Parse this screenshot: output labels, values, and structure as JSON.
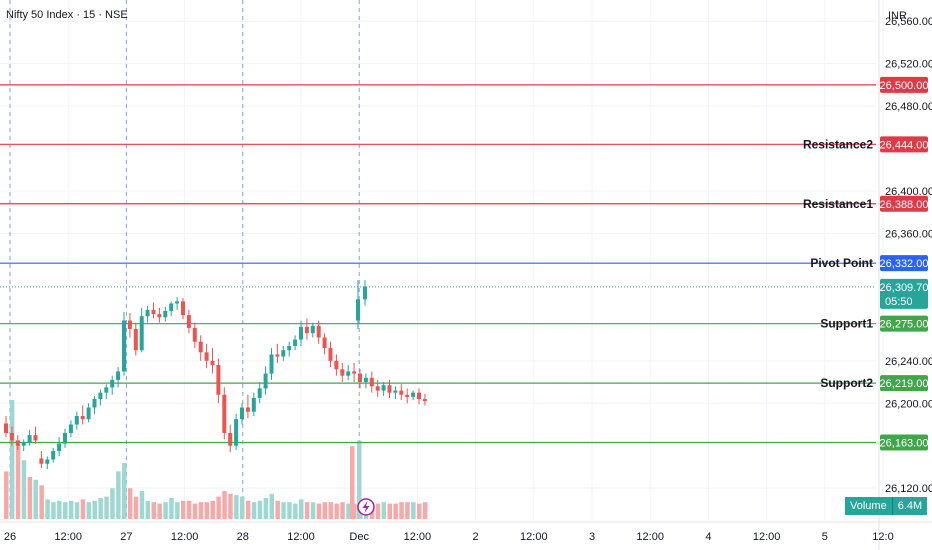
{
  "header": {
    "title": "Nifty 50 Index · 15 · NSE",
    "currency": "INR"
  },
  "volume_badge": {
    "label": "Volume",
    "value": "6.4M"
  },
  "colors": {
    "resistance": "#e03a48",
    "pivot": "#2962ff",
    "support": "#3fa64a",
    "up_candle": "#26a69a",
    "down_candle": "#ef5350",
    "up_volume": "#9fd8d2",
    "down_volume": "#f7a9a7",
    "separator": "#7ea6e0",
    "grid": "#f0f3fa",
    "lightning": "#9c27b0"
  },
  "chart_data": {
    "type": "candlestick",
    "symbol": "Nifty 50 Index",
    "interval": "15",
    "exchange": "NSE",
    "y_range": [
      26090,
      26580
    ],
    "y_ticks": [
      {
        "value": 26560,
        "label": "26,560.00"
      },
      {
        "value": 26520,
        "label": "26,520.00"
      },
      {
        "value": 26480,
        "label": "26,480.00"
      },
      {
        "value": 26400,
        "label": "26,400.00"
      },
      {
        "value": 26360,
        "label": "26,360.00"
      },
      {
        "value": 26240,
        "label": "26,240.00"
      },
      {
        "value": 26200,
        "label": "26,200.00"
      },
      {
        "value": 26120,
        "label": "26,120.00"
      }
    ],
    "x_ticks": [
      {
        "label": "26",
        "major": true
      },
      {
        "label": "12:00",
        "major": false
      },
      {
        "label": "27",
        "major": true
      },
      {
        "label": "12:00",
        "major": false
      },
      {
        "label": "28",
        "major": true
      },
      {
        "label": "12:00",
        "major": false
      },
      {
        "label": "Dec",
        "major": true
      },
      {
        "label": "12:00",
        "major": false
      },
      {
        "label": "2",
        "major": true
      },
      {
        "label": "12:00",
        "major": false
      },
      {
        "label": "3",
        "major": true
      },
      {
        "label": "12:00",
        "major": false
      },
      {
        "label": "4",
        "major": true
      },
      {
        "label": "12:00",
        "major": false
      },
      {
        "label": "5",
        "major": true
      },
      {
        "label": "12:0",
        "major": false
      }
    ],
    "levels": [
      {
        "name": "",
        "value": 26500,
        "label": "26,500.00",
        "kind": "resistance"
      },
      {
        "name": "Resistance2",
        "value": 26444,
        "label": "26,444.00",
        "kind": "resistance"
      },
      {
        "name": "Resistance1",
        "value": 26388,
        "label": "26,388.00",
        "kind": "resistance"
      },
      {
        "name": "Pivot Point",
        "value": 26332,
        "label": "26,332.00",
        "kind": "pivot"
      },
      {
        "name": "Support1",
        "value": 26275,
        "label": "26,275.00",
        "kind": "support"
      },
      {
        "name": "Support2",
        "value": 26219,
        "label": "26,219.00",
        "kind": "support"
      },
      {
        "name": "",
        "value": 26163,
        "label": "26,163.00",
        "kind": "support"
      }
    ],
    "last_price": {
      "value": 26309.7,
      "label": "26,309.70",
      "countdown": "05:50"
    },
    "candles": [
      {
        "o": 26181,
        "h": 26188,
        "c": 26172,
        "l": 26168
      },
      {
        "o": 26172,
        "h": 26178,
        "c": 26165,
        "l": 26160
      },
      {
        "o": 26165,
        "h": 26170,
        "c": 26160,
        "l": 26156
      },
      {
        "o": 26160,
        "h": 26166,
        "c": 26163,
        "l": 26155
      },
      {
        "o": 26163,
        "h": 26175,
        "c": 26170,
        "l": 26160
      },
      {
        "o": 26170,
        "h": 26178,
        "c": 26165,
        "l": 26162
      },
      {
        "o": 26148,
        "h": 26155,
        "c": 26143,
        "l": 26139
      },
      {
        "o": 26143,
        "h": 26150,
        "c": 26147,
        "l": 26138
      },
      {
        "o": 26147,
        "h": 26158,
        "c": 26155,
        "l": 26144
      },
      {
        "o": 26155,
        "h": 26168,
        "c": 26162,
        "l": 26150
      },
      {
        "o": 26162,
        "h": 26176,
        "c": 26172,
        "l": 26158
      },
      {
        "o": 26172,
        "h": 26184,
        "c": 26180,
        "l": 26168
      },
      {
        "o": 26180,
        "h": 26192,
        "c": 26188,
        "l": 26175
      },
      {
        "o": 26188,
        "h": 26198,
        "c": 26185,
        "l": 26180
      },
      {
        "o": 26185,
        "h": 26200,
        "c": 26196,
        "l": 26182
      },
      {
        "o": 26196,
        "h": 26207,
        "c": 26204,
        "l": 26190
      },
      {
        "o": 26204,
        "h": 26213,
        "c": 26210,
        "l": 26198
      },
      {
        "o": 26210,
        "h": 26218,
        "c": 26215,
        "l": 26204
      },
      {
        "o": 26215,
        "h": 26226,
        "c": 26222,
        "l": 26208
      },
      {
        "o": 26222,
        "h": 26234,
        "c": 26230,
        "l": 26215
      },
      {
        "o": 26230,
        "h": 26286,
        "c": 26278,
        "l": 26226
      },
      {
        "o": 26278,
        "h": 26285,
        "c": 26270,
        "l": 26262
      },
      {
        "o": 26270,
        "h": 26276,
        "c": 26250,
        "l": 26245
      },
      {
        "o": 26250,
        "h": 26290,
        "c": 26282,
        "l": 26248
      },
      {
        "o": 26282,
        "h": 26292,
        "c": 26288,
        "l": 26276
      },
      {
        "o": 26288,
        "h": 26295,
        "c": 26284,
        "l": 26280
      },
      {
        "o": 26284,
        "h": 26290,
        "c": 26281,
        "l": 26276
      },
      {
        "o": 26281,
        "h": 26291,
        "c": 26287,
        "l": 26277
      },
      {
        "o": 26287,
        "h": 26296,
        "c": 26294,
        "l": 26282
      },
      {
        "o": 26294,
        "h": 26300,
        "c": 26296,
        "l": 26288
      },
      {
        "o": 26296,
        "h": 26299,
        "c": 26283,
        "l": 26279
      },
      {
        "o": 26283,
        "h": 26288,
        "c": 26271,
        "l": 26266
      },
      {
        "o": 26271,
        "h": 26276,
        "c": 26258,
        "l": 26252
      },
      {
        "o": 26258,
        "h": 26264,
        "c": 26248,
        "l": 26240
      },
      {
        "o": 26248,
        "h": 26256,
        "c": 26240,
        "l": 26233
      },
      {
        "o": 26240,
        "h": 26252,
        "c": 26236,
        "l": 26228
      },
      {
        "o": 26236,
        "h": 26242,
        "c": 26208,
        "l": 26200
      },
      {
        "o": 26208,
        "h": 26215,
        "c": 26172,
        "l": 26166
      },
      {
        "o": 26172,
        "h": 26180,
        "c": 26160,
        "l": 26154
      },
      {
        "o": 26160,
        "h": 26190,
        "c": 26185,
        "l": 26156
      },
      {
        "o": 26185,
        "h": 26200,
        "c": 26196,
        "l": 26180
      },
      {
        "o": 26196,
        "h": 26208,
        "c": 26192,
        "l": 26186
      },
      {
        "o": 26192,
        "h": 26210,
        "c": 26205,
        "l": 26188
      },
      {
        "o": 26205,
        "h": 26220,
        "c": 26214,
        "l": 26200
      },
      {
        "o": 26214,
        "h": 26235,
        "c": 26228,
        "l": 26208
      },
      {
        "o": 26228,
        "h": 26252,
        "c": 26246,
        "l": 26222
      },
      {
        "o": 26246,
        "h": 26256,
        "c": 26244,
        "l": 26238
      },
      {
        "o": 26244,
        "h": 26254,
        "c": 26250,
        "l": 26240
      },
      {
        "o": 26250,
        "h": 26258,
        "c": 26254,
        "l": 26244
      },
      {
        "o": 26254,
        "h": 26264,
        "c": 26260,
        "l": 26250
      },
      {
        "o": 26260,
        "h": 26278,
        "c": 26272,
        "l": 26254
      },
      {
        "o": 26272,
        "h": 26280,
        "c": 26266,
        "l": 26260
      },
      {
        "o": 26266,
        "h": 26276,
        "c": 26273,
        "l": 26262
      },
      {
        "o": 26273,
        "h": 26278,
        "c": 26262,
        "l": 26256
      },
      {
        "o": 26262,
        "h": 26266,
        "c": 26252,
        "l": 26246
      },
      {
        "o": 26252,
        "h": 26258,
        "c": 26240,
        "l": 26234
      },
      {
        "o": 26240,
        "h": 26246,
        "c": 26232,
        "l": 26226
      },
      {
        "o": 26232,
        "h": 26238,
        "c": 26226,
        "l": 26220
      },
      {
        "o": 26226,
        "h": 26236,
        "c": 26230,
        "l": 26222
      },
      {
        "o": 26230,
        "h": 26238,
        "c": 26228,
        "l": 26220
      },
      {
        "o": 26228,
        "h": 26232,
        "c": 26220,
        "l": 26214
      },
      {
        "o": 26220,
        "h": 26228,
        "c": 26224,
        "l": 26214
      },
      {
        "o": 26224,
        "h": 26230,
        "c": 26216,
        "l": 26210
      },
      {
        "o": 26216,
        "h": 26222,
        "c": 26212,
        "l": 26206
      },
      {
        "o": 26212,
        "h": 26220,
        "c": 26217,
        "l": 26207
      },
      {
        "o": 26217,
        "h": 26222,
        "c": 26210,
        "l": 26205
      },
      {
        "o": 26210,
        "h": 26216,
        "c": 26212,
        "l": 26204
      },
      {
        "o": 26212,
        "h": 26218,
        "c": 26208,
        "l": 26203
      },
      {
        "o": 26208,
        "h": 26214,
        "c": 26206,
        "l": 26200
      },
      {
        "o": 26206,
        "h": 26212,
        "c": 26210,
        "l": 26203
      },
      {
        "o": 26210,
        "h": 26214,
        "c": 26204,
        "l": 26199
      },
      {
        "o": 26204,
        "h": 26209,
        "c": 26202,
        "l": 26198
      },
      {
        "o": 26278,
        "h": 26316,
        "c": 26298,
        "l": 26270
      },
      {
        "o": 26298,
        "h": 26316,
        "c": 26310,
        "l": 26292
      }
    ],
    "volumes": [
      {
        "v": 0.34,
        "up": false
      },
      {
        "v": 0.85,
        "up": true
      },
      {
        "v": 0.56,
        "up": false
      },
      {
        "v": 0.42,
        "up": true
      },
      {
        "v": 0.3,
        "up": false
      },
      {
        "v": 0.28,
        "up": true
      },
      {
        "v": 0.24,
        "up": false
      },
      {
        "v": 0.14,
        "up": true
      },
      {
        "v": 0.12,
        "up": true
      },
      {
        "v": 0.13,
        "up": true
      },
      {
        "v": 0.12,
        "up": true
      },
      {
        "v": 0.13,
        "up": true
      },
      {
        "v": 0.12,
        "up": true
      },
      {
        "v": 0.14,
        "up": false
      },
      {
        "v": 0.12,
        "up": true
      },
      {
        "v": 0.13,
        "up": true
      },
      {
        "v": 0.15,
        "up": true
      },
      {
        "v": 0.16,
        "up": true
      },
      {
        "v": 0.22,
        "up": true
      },
      {
        "v": 0.34,
        "up": true
      },
      {
        "v": 0.4,
        "up": true
      },
      {
        "v": 0.22,
        "up": false
      },
      {
        "v": 0.16,
        "up": false
      },
      {
        "v": 0.2,
        "up": true
      },
      {
        "v": 0.13,
        "up": true
      },
      {
        "v": 0.12,
        "up": false
      },
      {
        "v": 0.11,
        "up": false
      },
      {
        "v": 0.12,
        "up": true
      },
      {
        "v": 0.15,
        "up": true
      },
      {
        "v": 0.12,
        "up": true
      },
      {
        "v": 0.13,
        "up": false
      },
      {
        "v": 0.13,
        "up": false
      },
      {
        "v": 0.11,
        "up": false
      },
      {
        "v": 0.12,
        "up": false
      },
      {
        "v": 0.12,
        "up": false
      },
      {
        "v": 0.13,
        "up": false
      },
      {
        "v": 0.16,
        "up": false
      },
      {
        "v": 0.2,
        "up": false
      },
      {
        "v": 0.18,
        "up": false
      },
      {
        "v": 0.17,
        "up": true
      },
      {
        "v": 0.16,
        "up": true
      },
      {
        "v": 0.13,
        "up": false
      },
      {
        "v": 0.12,
        "up": true
      },
      {
        "v": 0.13,
        "up": true
      },
      {
        "v": 0.15,
        "up": true
      },
      {
        "v": 0.18,
        "up": true
      },
      {
        "v": 0.13,
        "up": false
      },
      {
        "v": 0.12,
        "up": true
      },
      {
        "v": 0.12,
        "up": true
      },
      {
        "v": 0.11,
        "up": true
      },
      {
        "v": 0.14,
        "up": true
      },
      {
        "v": 0.12,
        "up": false
      },
      {
        "v": 0.12,
        "up": true
      },
      {
        "v": 0.11,
        "up": false
      },
      {
        "v": 0.12,
        "up": false
      },
      {
        "v": 0.12,
        "up": false
      },
      {
        "v": 0.11,
        "up": false
      },
      {
        "v": 0.12,
        "up": false
      },
      {
        "v": 0.11,
        "up": true
      },
      {
        "v": 0.11,
        "up": false
      },
      {
        "v": 0.12,
        "up": false
      },
      {
        "v": 0.11,
        "up": true
      },
      {
        "v": 0.12,
        "up": false
      },
      {
        "v": 0.11,
        "up": false
      },
      {
        "v": 0.12,
        "up": true
      },
      {
        "v": 0.11,
        "up": false
      },
      {
        "v": 0.11,
        "up": false
      },
      {
        "v": 0.12,
        "up": false
      },
      {
        "v": 0.12,
        "up": false
      },
      {
        "v": 0.12,
        "up": true
      },
      {
        "v": 0.11,
        "up": false
      },
      {
        "v": 0.12,
        "up": false
      },
      {
        "v": 0.52,
        "up": false
      },
      {
        "v": 0.56,
        "up": true
      }
    ]
  }
}
